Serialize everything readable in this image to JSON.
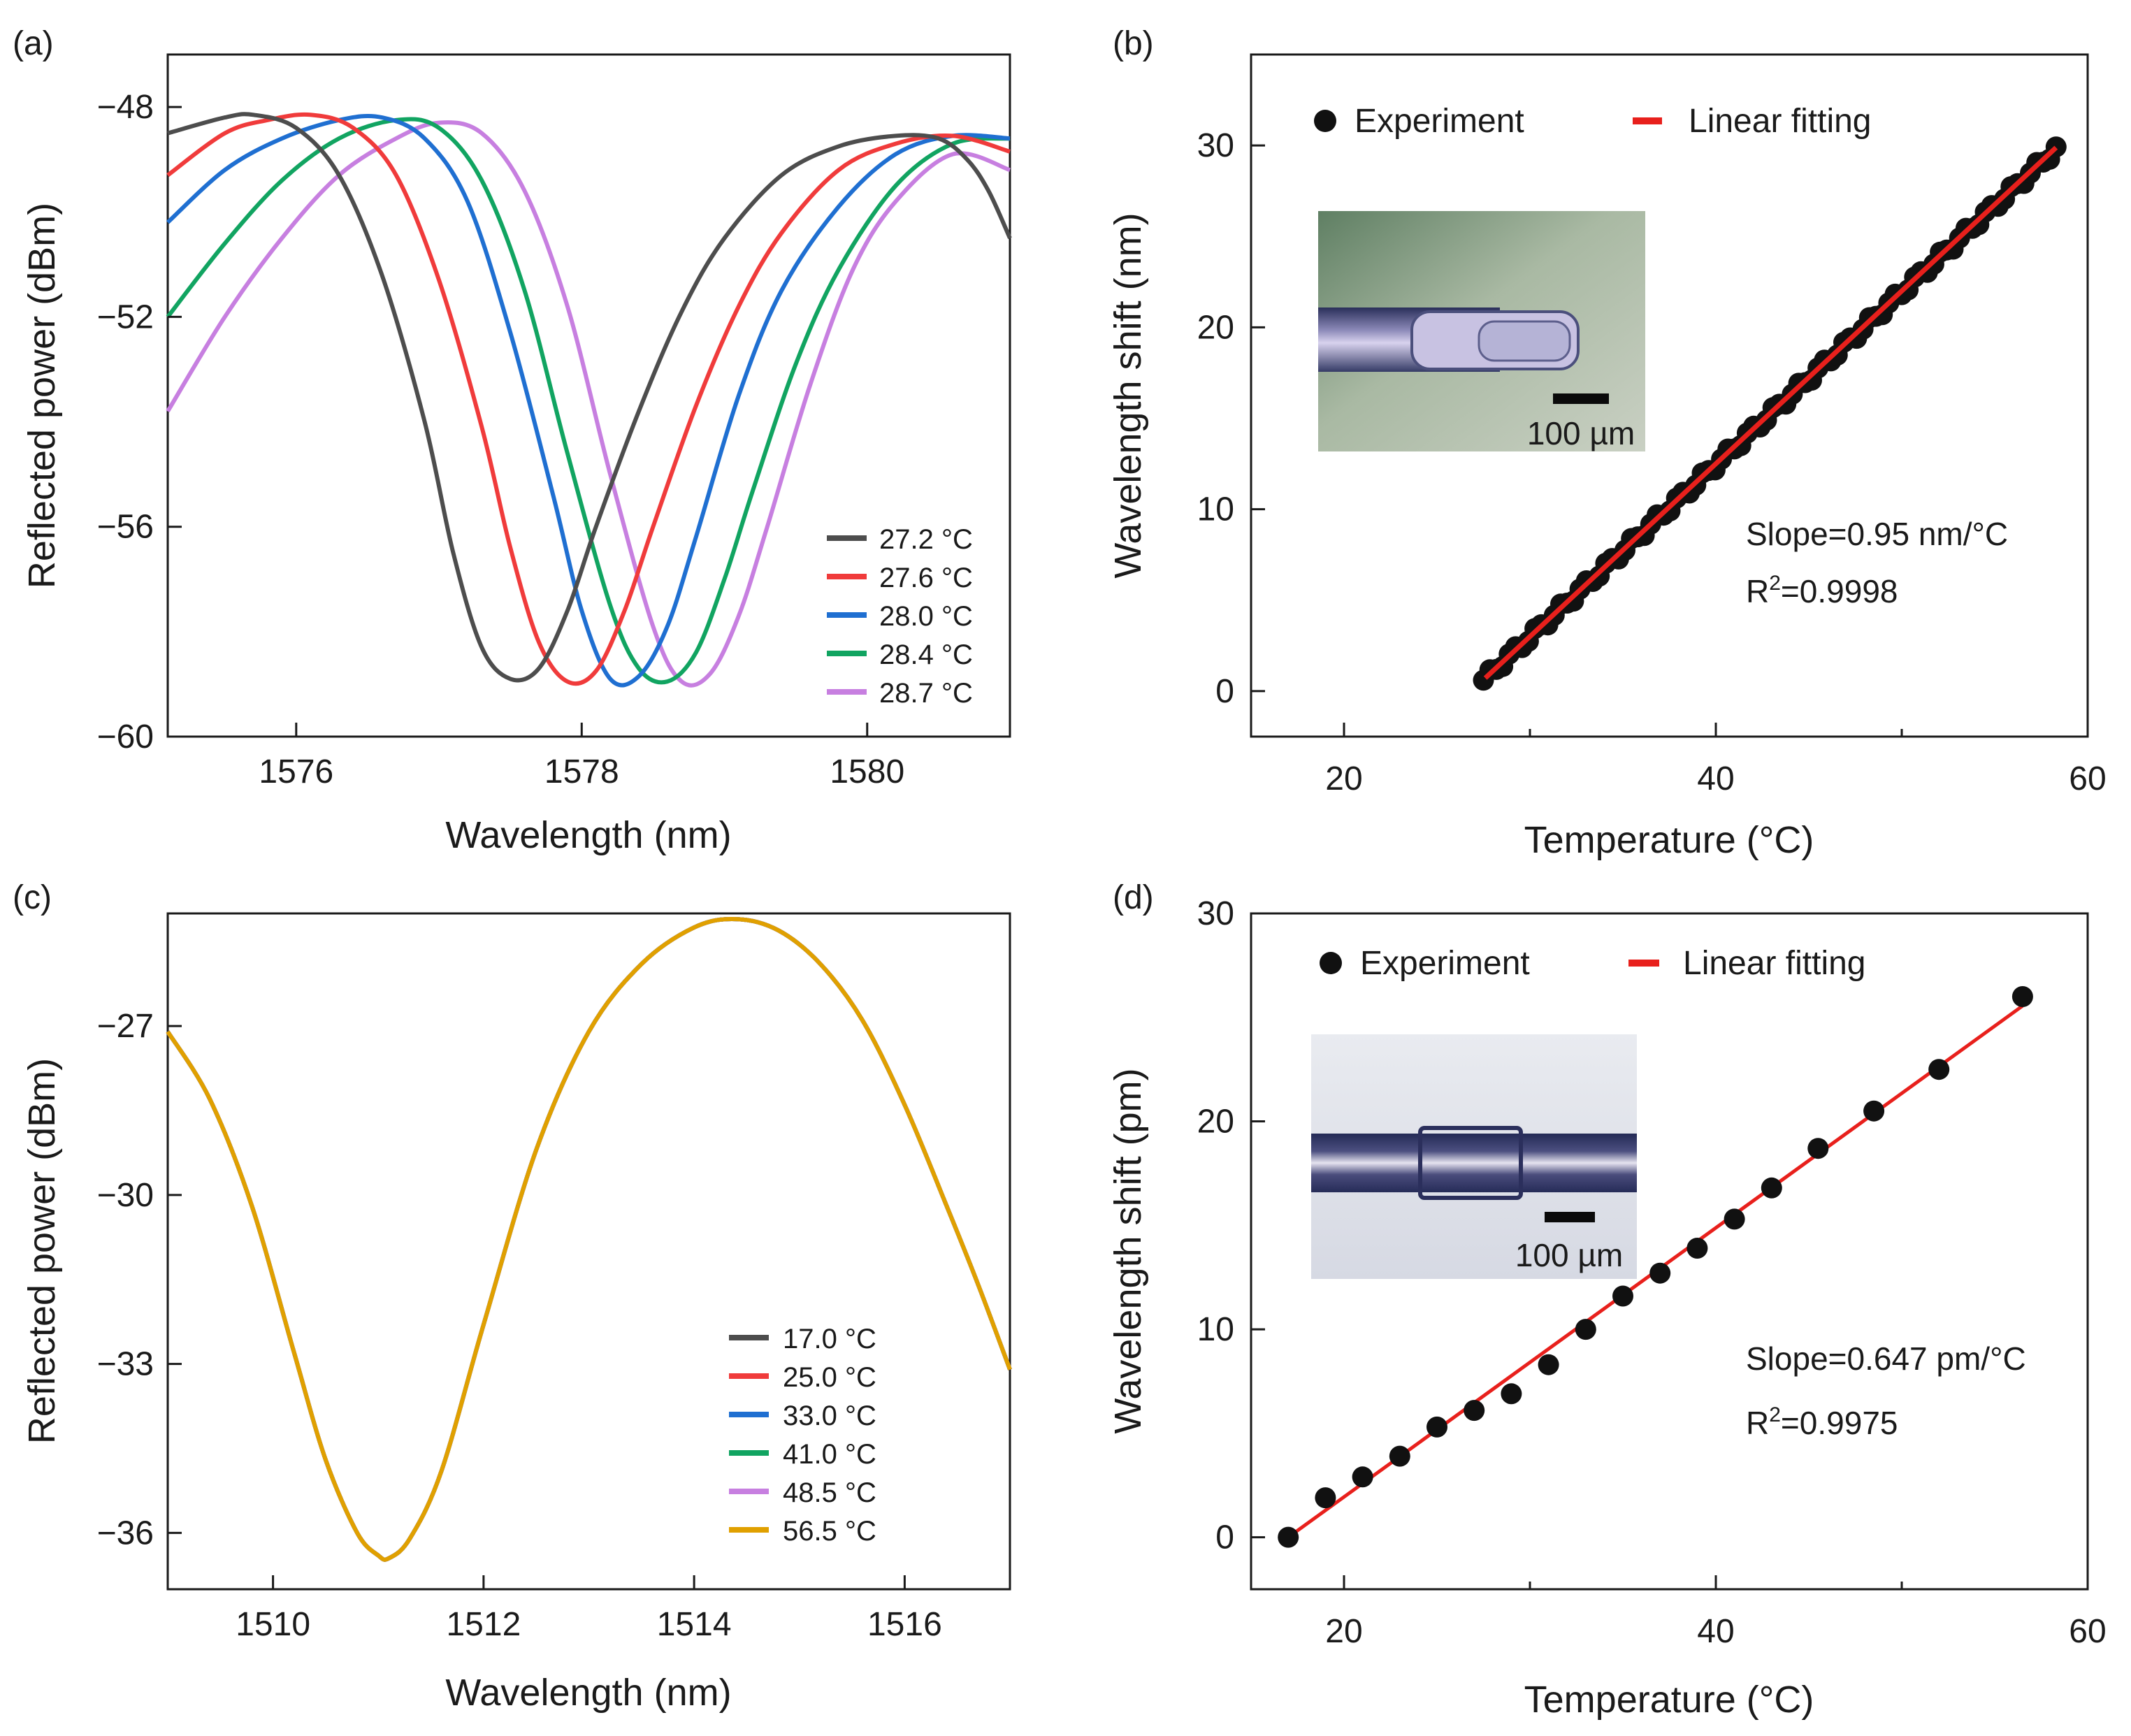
{
  "figure": {
    "panels": [
      {
        "id": "a",
        "label": "(a)",
        "chart_data": {
          "type": "line",
          "title": "",
          "xlabel": "Wavelength (nm)",
          "ylabel": "Reflected power (dBm)",
          "xlim": [
            1575.1,
            1581.0
          ],
          "ylim": [
            -60,
            -47
          ],
          "xticks": [
            1576,
            1578,
            1580
          ],
          "yticks": [
            -60,
            -56,
            -52,
            -48
          ],
          "xtick_labels": [
            "1576",
            "1578",
            "1580"
          ],
          "ytick_labels": [
            "−60",
            "−56",
            "−52",
            "−48"
          ],
          "legend_position": "bottom-right",
          "series": [
            {
              "name": "27.2 °C",
              "color": "#4d4d4d",
              "x": [
                1575.1,
                1575.5,
                1575.7,
                1576.0,
                1576.3,
                1576.6,
                1576.9,
                1577.1,
                1577.3,
                1577.5,
                1577.7,
                1577.9,
                1578.1,
                1578.4,
                1578.7,
                1579.0,
                1579.4,
                1579.8,
                1580.2,
                1580.5,
                1580.7,
                1580.85,
                1581.0
              ],
              "y": [
                -48.5,
                -48.2,
                -48.15,
                -48.4,
                -49.3,
                -51.2,
                -54.0,
                -56.5,
                -58.3,
                -58.9,
                -58.7,
                -57.6,
                -56.0,
                -53.8,
                -51.9,
                -50.5,
                -49.3,
                -48.75,
                -48.55,
                -48.6,
                -49.0,
                -49.6,
                -50.5
              ]
            },
            {
              "name": "27.6 °C",
              "color": "#f03b3b",
              "x": [
                1575.1,
                1575.5,
                1575.8,
                1576.1,
                1576.4,
                1576.7,
                1577.0,
                1577.3,
                1577.5,
                1577.7,
                1577.9,
                1578.1,
                1578.3,
                1578.5,
                1578.8,
                1579.1,
                1579.4,
                1579.8,
                1580.2,
                1580.6,
                1581.0
              ],
              "y": [
                -49.3,
                -48.5,
                -48.25,
                -48.15,
                -48.4,
                -49.3,
                -51.3,
                -54.1,
                -56.4,
                -58.2,
                -58.95,
                -58.75,
                -57.6,
                -56.0,
                -53.7,
                -51.8,
                -50.4,
                -49.2,
                -48.7,
                -48.55,
                -48.85
              ]
            },
            {
              "name": "28.0 °C",
              "color": "#1f6fd1",
              "x": [
                1575.1,
                1575.5,
                1575.9,
                1576.3,
                1576.6,
                1576.9,
                1577.2,
                1577.5,
                1577.8,
                1578.0,
                1578.2,
                1578.4,
                1578.6,
                1578.8,
                1579.1,
                1579.4,
                1579.8,
                1580.2,
                1580.6,
                1581.0
              ],
              "y": [
                -50.2,
                -49.2,
                -48.6,
                -48.25,
                -48.2,
                -48.6,
                -49.8,
                -52.3,
                -55.4,
                -57.6,
                -58.9,
                -58.85,
                -57.9,
                -56.2,
                -53.5,
                -51.5,
                -49.9,
                -48.9,
                -48.55,
                -48.6
              ]
            },
            {
              "name": "28.4 °C",
              "color": "#11a461",
              "x": [
                1575.1,
                1575.5,
                1575.9,
                1576.3,
                1576.7,
                1577.0,
                1577.3,
                1577.6,
                1577.9,
                1578.2,
                1578.4,
                1578.6,
                1578.8,
                1579.0,
                1579.2,
                1579.5,
                1579.8,
                1580.2,
                1580.6,
                1581.0
              ],
              "y": [
                -52.0,
                -50.6,
                -49.4,
                -48.6,
                -48.25,
                -48.4,
                -49.4,
                -51.5,
                -54.6,
                -57.5,
                -58.7,
                -58.95,
                -58.4,
                -57.0,
                -55.3,
                -52.9,
                -51.1,
                -49.5,
                -48.7,
                -48.6
              ]
            },
            {
              "name": "28.7 °C",
              "color": "#c77fe0",
              "x": [
                1575.1,
                1575.5,
                1575.9,
                1576.3,
                1576.7,
                1577.0,
                1577.3,
                1577.6,
                1577.9,
                1578.2,
                1578.5,
                1578.7,
                1578.9,
                1579.1,
                1579.3,
                1579.6,
                1579.9,
                1580.2,
                1580.6,
                1581.0
              ],
              "y": [
                -53.8,
                -52.0,
                -50.5,
                -49.3,
                -48.6,
                -48.3,
                -48.5,
                -49.6,
                -51.8,
                -55.0,
                -57.9,
                -58.95,
                -58.8,
                -57.7,
                -56.0,
                -53.3,
                -51.1,
                -49.8,
                -48.9,
                -49.2
              ]
            }
          ]
        }
      },
      {
        "id": "b",
        "label": "(b)",
        "chart_data": {
          "type": "scatter",
          "title": "",
          "xlabel": "Temperature (°C)",
          "ylabel": "Wavelength shift (nm)",
          "xlim": [
            15,
            60
          ],
          "ylim": [
            -2.5,
            35
          ],
          "xticks": [
            20,
            40,
            60
          ],
          "yticks": [
            0,
            10,
            20,
            30
          ],
          "xtick_labels": [
            "20",
            "40",
            "60"
          ],
          "ytick_labels": [
            "0",
            "10",
            "20",
            "30"
          ],
          "legend": [
            "Experiment",
            "Linear fitting"
          ],
          "legend_position": "top",
          "experiment_x_range": [
            27.5,
            58.3
          ],
          "experiment_y_range": [
            0.6,
            29.8
          ],
          "experiment_points": 90,
          "fit": {
            "slope": 0.95,
            "intercept": -25.5
          },
          "fit_x_range": [
            27.6,
            58.3
          ],
          "annotations": [
            "Slope=0.95 nm/°C",
            "R",
            "2",
            "=0.9998"
          ],
          "inset_scale_bar": "100 µm",
          "colors": {
            "points": "#111111",
            "fit": "#e8201c"
          }
        }
      },
      {
        "id": "c",
        "label": "(c)",
        "chart_data": {
          "type": "line",
          "title": "",
          "xlabel": "Wavelength (nm)",
          "ylabel": "Reflected power (dBm)",
          "xlim": [
            1509,
            1517
          ],
          "ylim": [
            -37,
            -25
          ],
          "xticks": [
            1510,
            1512,
            1514,
            1516
          ],
          "yticks": [
            -36,
            -33,
            -30,
            -27
          ],
          "xtick_labels": [
            "1510",
            "1512",
            "1514",
            "1516"
          ],
          "ytick_labels": [
            "−36",
            "−33",
            "−30",
            "−27"
          ],
          "legend_position": "bottom-right",
          "shared_curve": {
            "x": [
              1509.0,
              1509.4,
              1509.8,
              1510.2,
              1510.5,
              1510.8,
              1511.0,
              1511.1,
              1511.3,
              1511.6,
              1512.0,
              1512.5,
              1513.0,
              1513.5,
              1514.0,
              1514.4,
              1514.8,
              1515.2,
              1515.6,
              1516.0,
              1516.4,
              1516.7,
              1517.0
            ],
            "y": [
              -27.1,
              -28.3,
              -30.2,
              -32.8,
              -34.7,
              -36.0,
              -36.4,
              -36.45,
              -36.1,
              -34.9,
              -32.3,
              -29.2,
              -27.1,
              -25.9,
              -25.25,
              -25.1,
              -25.3,
              -25.9,
              -26.9,
              -28.4,
              -30.2,
              -31.6,
              -33.1
            ]
          },
          "series": [
            {
              "name": "17.0 °C",
              "color": "#4d4d4d"
            },
            {
              "name": "25.0 °C",
              "color": "#f03b3b"
            },
            {
              "name": "33.0 °C",
              "color": "#1f6fd1"
            },
            {
              "name": "41.0 °C",
              "color": "#11a461"
            },
            {
              "name": "48.5 °C",
              "color": "#c77fe0"
            },
            {
              "name": "56.5 °C",
              "color": "#e0a000"
            }
          ]
        }
      },
      {
        "id": "d",
        "label": "(d)",
        "chart_data": {
          "type": "scatter",
          "title": "",
          "xlabel": "Temperature (°C)",
          "ylabel": "Wavelength shift (pm)",
          "xlim": [
            15,
            60
          ],
          "ylim": [
            -2.5,
            30
          ],
          "xticks": [
            20,
            40,
            60
          ],
          "yticks": [
            0,
            10,
            20,
            30
          ],
          "xtick_labels": [
            "20",
            "40",
            "60"
          ],
          "ytick_labels": [
            "0",
            "10",
            "20",
            "30"
          ],
          "legend": [
            "Experiment",
            "Linear fitting"
          ],
          "legend_position": "top",
          "x": [
            17.0,
            19.0,
            21.0,
            23.0,
            25.0,
            27.0,
            29.0,
            31.0,
            33.0,
            35.0,
            37.0,
            39.0,
            41.0,
            43.0,
            45.5,
            48.5,
            52.0,
            56.5
          ],
          "y": [
            0.0,
            1.9,
            2.9,
            3.9,
            5.3,
            6.1,
            6.9,
            8.3,
            10.0,
            11.6,
            12.7,
            13.9,
            15.3,
            16.8,
            18.7,
            20.5,
            22.5,
            26.0
          ],
          "fit": {
            "slope": 0.647,
            "intercept": -11.0
          },
          "fit_x_range": [
            17.0,
            56.5
          ],
          "annotations": [
            "Slope=0.647 pm/°C",
            "R",
            "2",
            "=0.9975"
          ],
          "inset_scale_bar": "100 µm",
          "colors": {
            "points": "#111111",
            "fit": "#e8201c"
          }
        }
      }
    ]
  }
}
